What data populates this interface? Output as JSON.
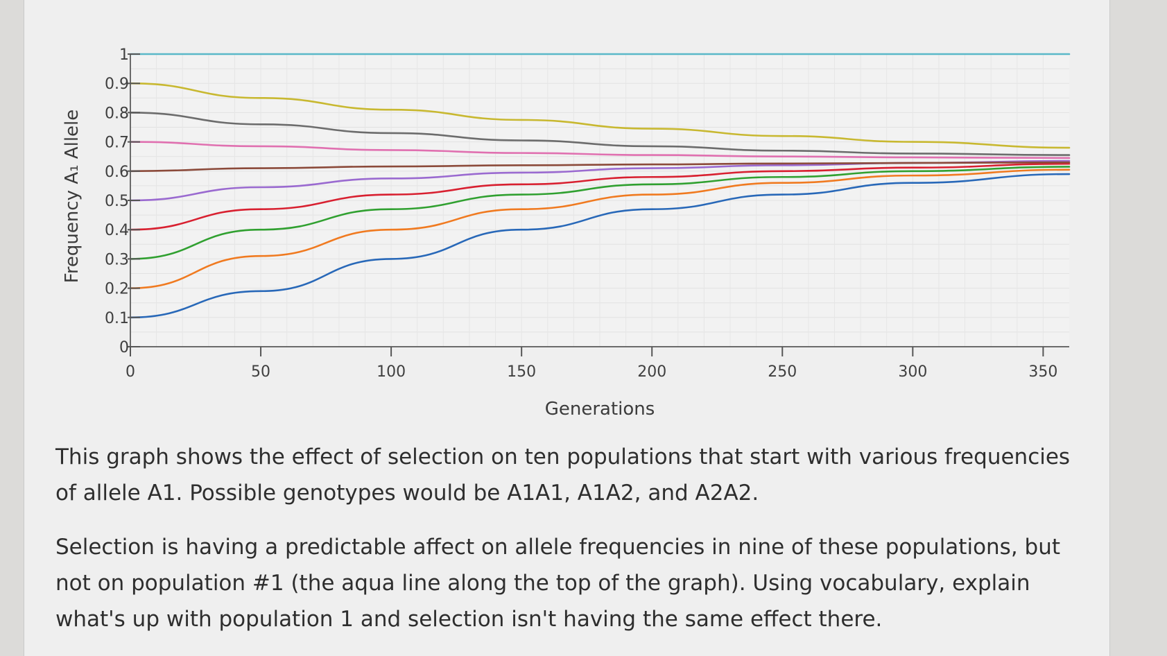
{
  "chart_data": {
    "type": "line",
    "title": "",
    "xlabel": "Generations",
    "ylabel": "Frequency A₁ Allele",
    "xlim": [
      0,
      360
    ],
    "ylim": [
      0,
      1
    ],
    "x_ticks": [
      "0",
      "50",
      "100",
      "150",
      "200",
      "250",
      "300",
      "350"
    ],
    "y_ticks": [
      "0",
      "0.1",
      "0.2",
      "0.3",
      "0.4",
      "0.5",
      "0.6",
      "0.7",
      "0.8",
      "0.9",
      "1"
    ],
    "grid": true,
    "x": [
      0,
      50,
      100,
      150,
      200,
      250,
      300,
      360
    ],
    "series": [
      {
        "color": "#5ab8c8",
        "values": [
          1.0,
          1.0,
          1.0,
          1.0,
          1.0,
          1.0,
          1.0,
          1.0
        ]
      },
      {
        "color": "#c8b830",
        "values": [
          0.9,
          0.85,
          0.81,
          0.775,
          0.745,
          0.72,
          0.7,
          0.68
        ]
      },
      {
        "color": "#6c6c6c",
        "values": [
          0.8,
          0.76,
          0.73,
          0.705,
          0.685,
          0.67,
          0.66,
          0.655
        ]
      },
      {
        "color": "#e070b0",
        "values": [
          0.7,
          0.685,
          0.672,
          0.662,
          0.655,
          0.65,
          0.647,
          0.645
        ]
      },
      {
        "color": "#8b4a3a",
        "values": [
          0.6,
          0.61,
          0.616,
          0.62,
          0.623,
          0.626,
          0.628,
          0.63
        ]
      },
      {
        "color": "#9a6ad0",
        "values": [
          0.5,
          0.545,
          0.575,
          0.595,
          0.61,
          0.62,
          0.628,
          0.635
        ]
      },
      {
        "color": "#d82030",
        "values": [
          0.4,
          0.47,
          0.52,
          0.555,
          0.58,
          0.6,
          0.612,
          0.625
        ]
      },
      {
        "color": "#30a030",
        "values": [
          0.3,
          0.4,
          0.47,
          0.52,
          0.555,
          0.58,
          0.6,
          0.615
        ]
      },
      {
        "color": "#f07a20",
        "values": [
          0.2,
          0.31,
          0.4,
          0.47,
          0.52,
          0.56,
          0.585,
          0.605
        ]
      },
      {
        "color": "#2868b8",
        "values": [
          0.1,
          0.19,
          0.3,
          0.4,
          0.47,
          0.52,
          0.56,
          0.59
        ]
      }
    ]
  },
  "text": {
    "paragraph1": "This graph shows the effect of selection on ten populations that start with various frequencies of allele A1. Possible genotypes would be A1A1, A1A2, and A2A2.",
    "paragraph2": "Selection is having a predictable affect on allele frequencies in nine of these populations, but not on population #1 (the aqua line along the top of the graph). Using vocabulary, explain what's up with population 1 and selection isn't having the same effect there."
  }
}
